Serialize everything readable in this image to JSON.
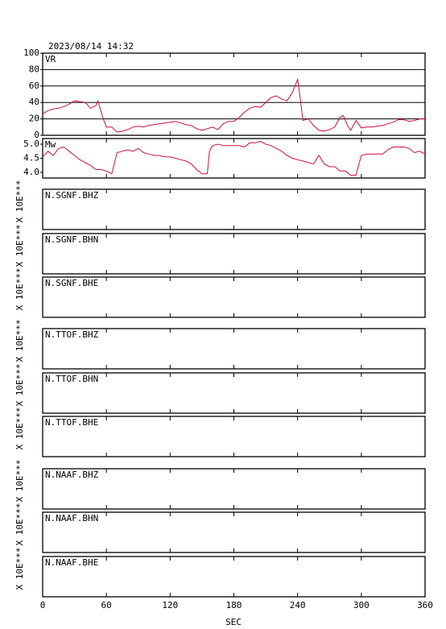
{
  "timestamp": "2023/08/14  14:32",
  "time_axis": {
    "label": "SEC",
    "xlim": [
      0,
      360
    ],
    "xticks": [
      0,
      60,
      120,
      180,
      240,
      300,
      360
    ]
  },
  "chart_data": [
    {
      "type": "line",
      "ylim": [
        0,
        100
      ],
      "yticks": [
        0,
        20,
        40,
        60,
        80,
        100
      ],
      "grid": true,
      "x": [
        0,
        5,
        10,
        15,
        20,
        25,
        30,
        35,
        40,
        45,
        50,
        52,
        57,
        60,
        65,
        70,
        75,
        80,
        85,
        90,
        95,
        100,
        105,
        110,
        115,
        120,
        125,
        130,
        135,
        140,
        145,
        150,
        155,
        160,
        165,
        170,
        175,
        180,
        185,
        190,
        195,
        200,
        205,
        210,
        215,
        220,
        225,
        230,
        235,
        240,
        243,
        245,
        250,
        255,
        260,
        265,
        270,
        275,
        280,
        283,
        287,
        290,
        295,
        300,
        305,
        310,
        315,
        320,
        325,
        330,
        335,
        340,
        345,
        350,
        355,
        360
      ],
      "series": [
        {
          "name": "VR",
          "color": "#c8103c",
          "values": [
            26,
            30,
            32,
            33,
            35,
            38,
            42,
            41,
            40,
            33,
            36,
            42,
            20,
            10,
            10,
            4,
            5,
            7,
            10,
            11,
            10,
            12,
            13,
            14,
            15,
            16,
            17,
            15,
            13,
            12,
            8,
            6,
            8,
            10,
            7,
            14,
            17,
            17,
            22,
            28,
            33,
            35,
            34,
            40,
            46,
            48,
            44,
            42,
            52,
            68,
            40,
            18,
            20,
            12,
            6,
            5,
            7,
            10,
            22,
            24,
            12,
            6,
            18,
            9,
            10,
            10,
            11,
            12,
            14,
            16,
            19,
            19,
            17,
            18,
            20,
            20
          ]
        }
      ]
    },
    {
      "type": "line",
      "ylim": [
        3.8,
        5.2
      ],
      "yticks": [
        {
          "value": 4,
          "label": "4.0"
        },
        4.5,
        {
          "value": 5,
          "label": "5.0"
        }
      ],
      "grid": false,
      "x": [
        0,
        5,
        10,
        15,
        20,
        25,
        30,
        35,
        40,
        45,
        50,
        55,
        60,
        65,
        70,
        75,
        80,
        85,
        90,
        95,
        100,
        105,
        110,
        115,
        120,
        125,
        130,
        135,
        140,
        145,
        150,
        155,
        157,
        160,
        165,
        170,
        175,
        180,
        185,
        190,
        195,
        200,
        205,
        210,
        215,
        220,
        225,
        230,
        235,
        240,
        245,
        250,
        255,
        260,
        265,
        270,
        275,
        280,
        285,
        290,
        295,
        300,
        305,
        310,
        315,
        320,
        325,
        330,
        335,
        340,
        345,
        350,
        355,
        360
      ],
      "series": [
        {
          "name": "Mw",
          "color": "#c8103c",
          "values": [
            4.55,
            4.75,
            4.6,
            4.85,
            4.9,
            4.75,
            4.6,
            4.45,
            4.35,
            4.25,
            4.1,
            4.1,
            4.05,
            3.95,
            4.7,
            4.75,
            4.8,
            4.75,
            4.85,
            4.7,
            4.65,
            4.6,
            4.6,
            4.55,
            4.55,
            4.5,
            4.45,
            4.4,
            4.3,
            4.1,
            3.95,
            3.95,
            4.75,
            4.95,
            5.0,
            4.95,
            4.95,
            4.95,
            4.95,
            4.9,
            5.05,
            5.05,
            5.1,
            5.0,
            4.95,
            4.85,
            4.75,
            4.6,
            4.5,
            4.45,
            4.4,
            4.35,
            4.3,
            4.6,
            4.3,
            4.2,
            4.2,
            4.05,
            4.05,
            3.9,
            3.9,
            4.6,
            4.65,
            4.65,
            4.65,
            4.65,
            4.8,
            4.9,
            4.9,
            4.9,
            4.85,
            4.7,
            4.75,
            4.65
          ]
        }
      ]
    },
    {
      "type": "waveform",
      "title": "N.SGNF.BHZ",
      "ylabel": "X 10E***"
    },
    {
      "type": "waveform",
      "title": "N.SGNF.BHN",
      "ylabel": "X 10E***"
    },
    {
      "type": "waveform",
      "title": "N.SGNF.BHE",
      "ylabel": "X 10E***"
    },
    {
      "type": "waveform",
      "title": "N.TTOF.BHZ",
      "ylabel": "X 10E***"
    },
    {
      "type": "waveform",
      "title": "N.TTOF.BHN",
      "ylabel": "X 10E***"
    },
    {
      "type": "waveform",
      "title": "N.TTOF.BHE",
      "ylabel": "X 10E***"
    },
    {
      "type": "waveform",
      "title": "N.NAAF.BHZ",
      "ylabel": "X 10E***"
    },
    {
      "type": "waveform",
      "title": "N.NAAF.BHN",
      "ylabel": "X 10E***"
    },
    {
      "type": "waveform",
      "title": "N.NAAF.BHE",
      "ylabel": "X 10E***"
    }
  ]
}
